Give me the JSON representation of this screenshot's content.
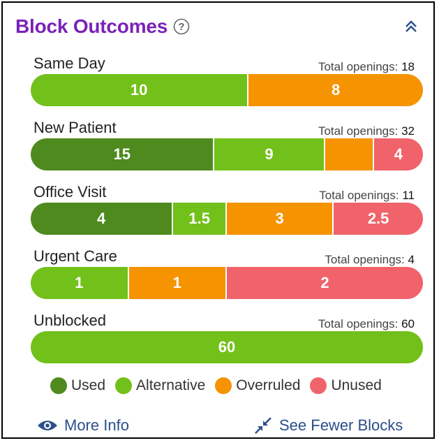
{
  "header": {
    "title": "Block Outcomes"
  },
  "colors": {
    "used": "#4e8a1e",
    "alternative": "#72c01a",
    "overruled": "#f59300",
    "unused": "#f0636a"
  },
  "chart_data": {
    "type": "bar",
    "orientation": "horizontal-stacked",
    "title": "Block Outcomes",
    "categories": [
      "Same Day",
      "New Patient",
      "Office Visit",
      "Urgent Care",
      "Unblocked"
    ],
    "totals_label": "Total openings:",
    "totals": [
      18,
      32,
      11,
      4,
      60
    ],
    "series": [
      {
        "name": "Used",
        "values": [
          0,
          15,
          4,
          0,
          0
        ]
      },
      {
        "name": "Alternative",
        "values": [
          10,
          9,
          1.5,
          1,
          60
        ]
      },
      {
        "name": "Overruled",
        "values": [
          8,
          4,
          3,
          1,
          0
        ]
      },
      {
        "name": "Unused",
        "values": [
          0,
          4,
          2.5,
          2,
          0
        ]
      }
    ],
    "bar_labels": [
      [
        "",
        "10",
        "8",
        ""
      ],
      [
        "15",
        "9",
        "",
        "4"
      ],
      [
        "4",
        "1.5",
        "3",
        "2.5"
      ],
      [
        "",
        "1",
        "1",
        "2"
      ],
      [
        "",
        "60",
        "",
        ""
      ]
    ],
    "legend_position": "bottom"
  },
  "legend": [
    "Used",
    "Alternative",
    "Overruled",
    "Unused"
  ],
  "footer": {
    "more_info": "More Info",
    "see_fewer": "See Fewer Blocks"
  }
}
